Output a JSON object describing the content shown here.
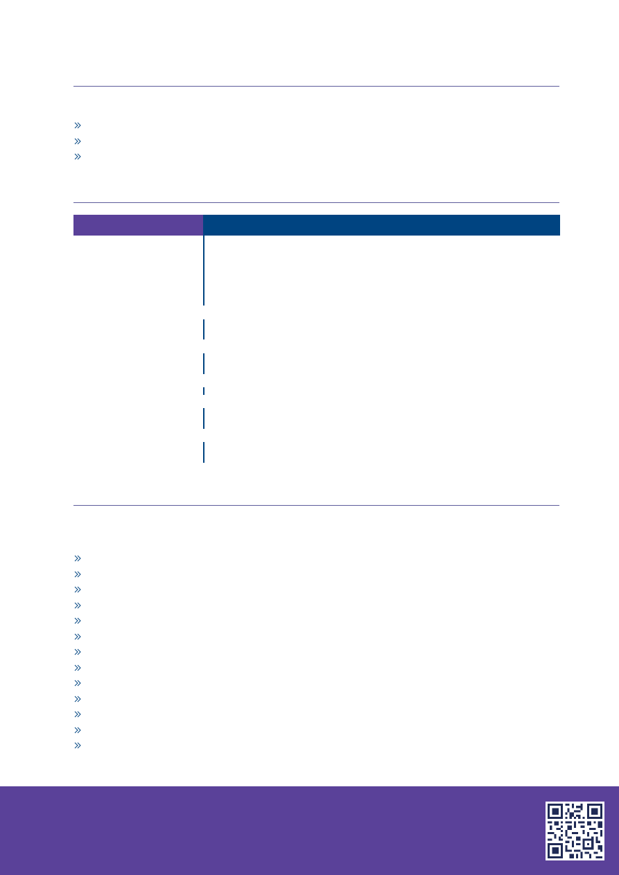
{
  "colors": {
    "purple": "#5a4199",
    "navy": "#004481",
    "rule": "#5b5a9a",
    "footer": "#5a4199"
  },
  "icons": {
    "bullet": "double-chevron-right-icon",
    "qr": "qr-code-icon"
  },
  "section1": {
    "bullets": [
      "",
      "",
      ""
    ]
  },
  "table": {
    "header_left": "",
    "header_right": "",
    "rows": [
      {
        "label": "",
        "description": ""
      },
      {
        "label": "",
        "description": ""
      },
      {
        "label": "",
        "description": ""
      },
      {
        "label": "",
        "description": ""
      },
      {
        "label": "",
        "description": ""
      },
      {
        "label": "",
        "description": ""
      }
    ]
  },
  "section3": {
    "bullets": [
      "",
      "",
      "",
      "",
      "",
      "",
      "",
      "",
      "",
      "",
      "",
      "",
      ""
    ]
  }
}
